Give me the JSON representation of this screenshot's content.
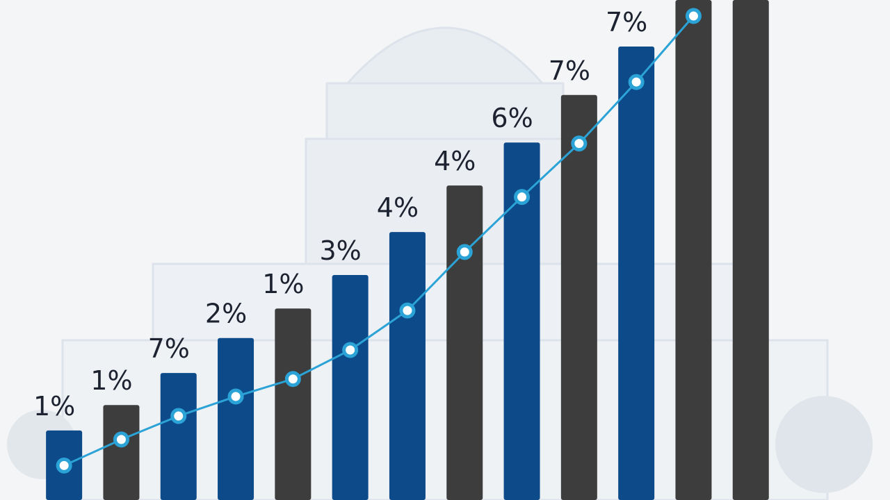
{
  "chart_data": {
    "type": "bar",
    "values": [
      13.9,
      19,
      25.4,
      32.4,
      38.3,
      45,
      53.6,
      62.9,
      71.5,
      81,
      90.7,
      100,
      100
    ],
    "colors": [
      "#0d4a8a",
      "#3d3d3d",
      "#0d4a8a",
      "#0d4a8a",
      "#3d3d3d",
      "#0d4a8a",
      "#0d4a8a",
      "#3d3d3d",
      "#0d4a8a",
      "#3d3d3d",
      "#0d4a8a",
      "#3d3d3d",
      "#3d3d3d"
    ],
    "annotations": [
      "1%",
      "1%",
      "7%",
      "2%",
      "1%",
      "3%",
      "4%",
      "4%",
      "6%",
      "7%",
      "7%"
    ],
    "line": {
      "values": [
        6.9,
        12.1,
        16.8,
        20.7,
        24.2,
        30,
        37.9,
        49.6,
        60.6,
        71.3,
        83.6,
        96.8,
        null
      ],
      "color": "#2ba3d6"
    },
    "ylim": [
      0,
      100
    ]
  }
}
